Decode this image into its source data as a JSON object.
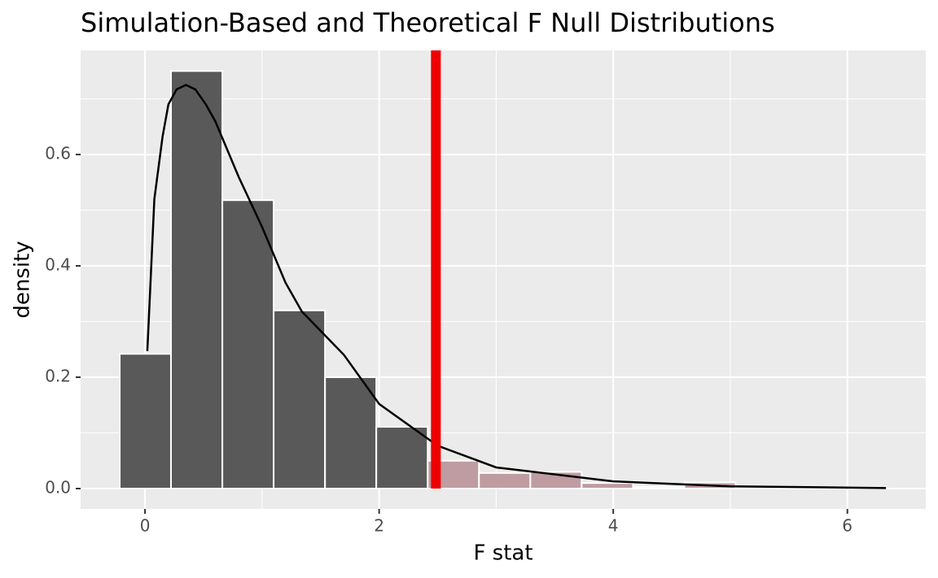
{
  "chart_data": {
    "type": "histogram",
    "title": "Simulation-Based and Theoretical F Null Distributions",
    "x_label": "F stat",
    "y_label": "density",
    "bins": [
      -0.216,
      0.222,
      0.661,
      1.099,
      1.538,
      1.976,
      2.415,
      2.853,
      3.292,
      3.73,
      4.169,
      4.607,
      5.046
    ],
    "values": [
      0.242,
      0.75,
      0.518,
      0.32,
      0.2,
      0.111,
      0.05,
      0.028,
      0.03,
      0.01,
      0.003,
      0.011
    ],
    "colors": [
      "#595959",
      "#595959",
      "#595959",
      "#595959",
      "#595959",
      "#595959",
      "#bf9ca2",
      "#bf9ca2",
      "#bf9ca2",
      "#bf9ca2",
      "#bf9ca2",
      "#bf9ca2"
    ],
    "curve": {
      "x": [
        0.02,
        0.08,
        0.15,
        0.2,
        0.27,
        0.35,
        0.43,
        0.52,
        0.6,
        0.8,
        1.0,
        1.2,
        1.34,
        1.7,
        2.0,
        2.5,
        3.0,
        4.0,
        5.0,
        6.33
      ],
      "y": [
        0.247,
        0.52,
        0.632,
        0.69,
        0.717,
        0.725,
        0.717,
        0.69,
        0.66,
        0.56,
        0.47,
        0.37,
        0.318,
        0.24,
        0.152,
        0.077,
        0.038,
        0.013,
        0.004,
        0.001
      ],
      "color": "#000000"
    },
    "observed_stat": 2.485,
    "observed_color": "#ee0000",
    "xlim": [
      -0.55,
      6.67
    ],
    "ylim": [
      -0.0365,
      0.787
    ],
    "xticks": [
      0,
      2,
      4,
      6
    ],
    "yticks": [
      {
        "value": 0,
        "label": "0.0"
      },
      0.2,
      0.4,
      0.6
    ],
    "x_minor_ticks": [
      1,
      3,
      5
    ],
    "y_minor_ticks": [
      0.1,
      0.3,
      0.5,
      0.7
    ],
    "grid": true
  }
}
